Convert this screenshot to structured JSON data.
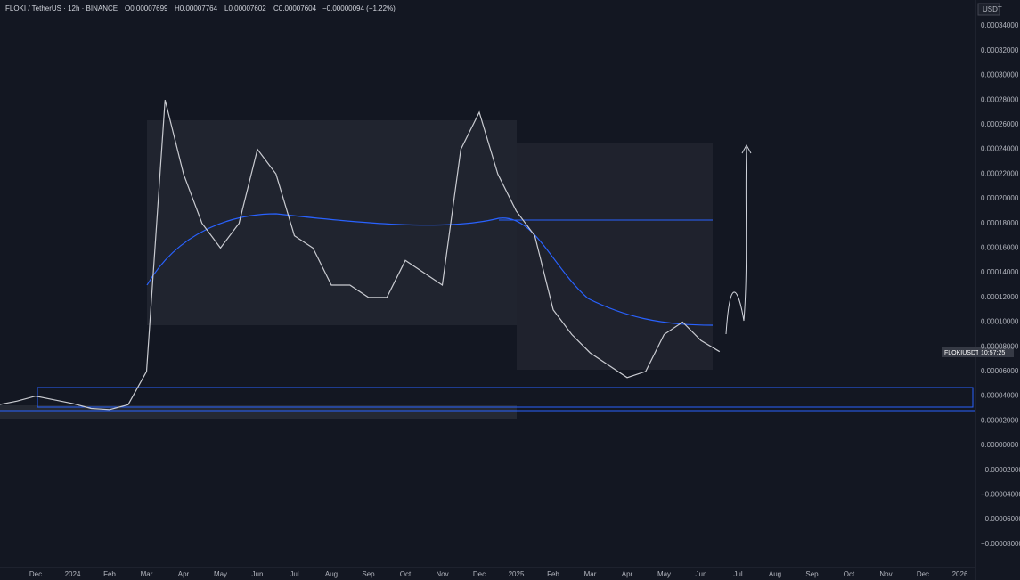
{
  "chart_data": {
    "type": "line",
    "title": "FLOKI / TetherUS · 12h · BINANCE",
    "ohlc": [
      "O0.00007699",
      "H0.00007764",
      "L0.00007602",
      "C0.00007604",
      "−0.00000094 (−1.22%)"
    ],
    "currency": "USDT",
    "price_tag": "FLOKIUSDT",
    "countdown": "10:57:25",
    "grid": false,
    "categories": [
      null,
      null,
      "Dec",
      null,
      "2024",
      null,
      "Feb",
      null,
      "Mar",
      null,
      "Apr",
      null,
      "May",
      null,
      "Jun",
      null,
      "Jul",
      null,
      "Aug",
      null,
      "Sep",
      null,
      "Oct",
      null,
      "Nov",
      null,
      "Dec",
      null,
      "2025",
      null,
      "Feb",
      null,
      "Mar",
      null,
      "Apr",
      null,
      "May",
      null,
      "Jun",
      null,
      "Jul",
      null,
      "Aug",
      null,
      "Sep",
      null,
      "Oct",
      null,
      "Nov",
      null,
      "Dec",
      null,
      "2026",
      null
    ],
    "series": [
      {
        "name": "FLOKIUSDT",
        "color": "#c9cbd1",
        "values": [
          3.3e-05,
          3.6e-05,
          4e-05,
          3.7e-05,
          3.4e-05,
          3e-05,
          2.9e-05,
          3.3e-05,
          6e-05,
          0.00028,
          0.00022,
          0.00018,
          0.00016,
          0.00018,
          0.00024,
          0.00022,
          0.00017,
          0.00016,
          0.00013,
          0.00013,
          0.00012,
          0.00012,
          0.00015,
          0.00014,
          0.00013,
          0.00024,
          0.00027,
          0.00022,
          0.00019,
          0.00017,
          0.00011,
          9e-05,
          7.5e-05,
          6.5e-05,
          5.5e-05,
          6e-05,
          9e-05,
          0.0001,
          8.5e-05,
          7.6e-05,
          null,
          null,
          null,
          null,
          null,
          null,
          null,
          null,
          null,
          null,
          null,
          null,
          null,
          null
        ]
      }
    ],
    "ylim": [
      -9.89e-05,
      0.000361
    ],
    "yticks": [
      {
        "value": 0.00034,
        "label": "0.00034000"
      },
      {
        "value": 0.00032,
        "label": "0.00032000"
      },
      {
        "value": 0.0003,
        "label": "0.00030000"
      },
      {
        "value": 0.00028,
        "label": "0.00028000"
      },
      {
        "value": 0.00026,
        "label": "0.00026000"
      },
      {
        "value": 0.00024,
        "label": "0.00024000"
      },
      {
        "value": 0.00022,
        "label": "0.00022000"
      },
      {
        "value": 0.0002,
        "label": "0.00020000"
      },
      {
        "value": 0.00018,
        "label": "0.00018000"
      },
      {
        "value": 0.00016,
        "label": "0.00016000"
      },
      {
        "value": 0.00014,
        "label": "0.00014000"
      },
      {
        "value": 0.00012,
        "label": "0.00012000"
      },
      {
        "value": 0.0001,
        "label": "0.00010000"
      },
      {
        "value": 8e-05,
        "label": "0.00008000"
      },
      {
        "value": 6e-05,
        "label": "0.00006000"
      },
      {
        "value": 4e-05,
        "label": "0.00004000"
      },
      {
        "value": 2e-05,
        "label": "0.00002000"
      },
      {
        "value": 0,
        "label": "0.00000000"
      },
      {
        "value": -2e-05,
        "label": "−0.00002000"
      },
      {
        "value": -4e-05,
        "label": "−0.00004000"
      },
      {
        "value": -6e-05,
        "label": "−0.00006000"
      },
      {
        "value": -8e-05,
        "label": "−0.00008000"
      }
    ]
  }
}
